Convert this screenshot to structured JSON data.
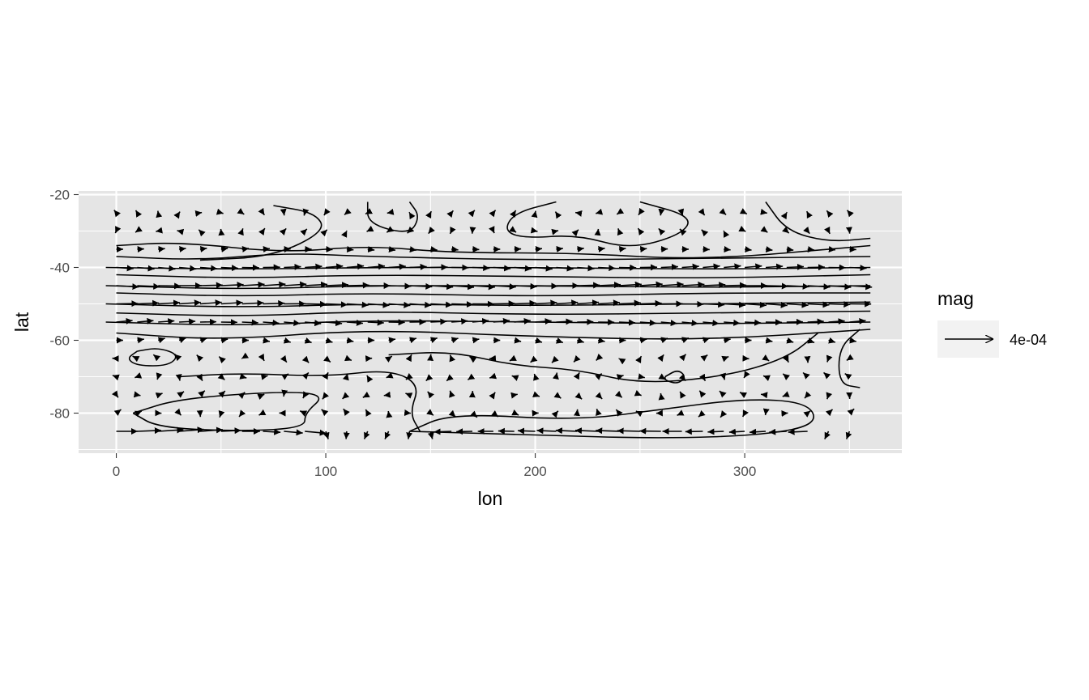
{
  "chart_data": {
    "type": "vector-field-contour",
    "xlabel": "lon",
    "ylabel": "lat",
    "xlim": [
      -18,
      375
    ],
    "ylim": [
      -91,
      -19
    ],
    "x_ticks": [
      0,
      100,
      200,
      300
    ],
    "x_tick_labels": [
      "0",
      "100",
      "200",
      "300"
    ],
    "y_ticks": [
      -20,
      -40,
      -60,
      -80
    ],
    "y_tick_labels": [
      "-20",
      "-40",
      "-60",
      "-80"
    ],
    "grid": true,
    "panel_background": "#e5e5e5",
    "grid_color": "#ffffff",
    "line_color": "#000000",
    "legend": {
      "title": "mag",
      "label": "4e-04",
      "placement": "right"
    },
    "vector_grid": {
      "lon_start": 0,
      "lon_step": 10,
      "lon_count": 36,
      "lat_values": [
        -25,
        -30,
        -35,
        -40,
        -45,
        -50,
        -55,
        -60,
        -65,
        -70,
        -75,
        -80,
        -85
      ]
    },
    "contours": [
      [
        [
          -5,
          -40
        ],
        [
          60,
          -40.5
        ],
        [
          120,
          -40
        ],
        [
          200,
          -40
        ],
        [
          280,
          -40.5
        ],
        [
          360,
          -40
        ]
      ],
      [
        [
          -5,
          -45
        ],
        [
          60,
          -46
        ],
        [
          120,
          -45
        ],
        [
          200,
          -45
        ],
        [
          280,
          -45.5
        ],
        [
          360,
          -45
        ]
      ],
      [
        [
          -5,
          -50
        ],
        [
          60,
          -51
        ],
        [
          120,
          -50
        ],
        [
          200,
          -50.5
        ],
        [
          280,
          -50
        ],
        [
          360,
          -49.5
        ]
      ],
      [
        [
          -5,
          -55
        ],
        [
          60,
          -56
        ],
        [
          120,
          -54.5
        ],
        [
          200,
          -55
        ],
        [
          280,
          -55.5
        ],
        [
          360,
          -55
        ]
      ],
      [
        [
          0,
          -37
        ],
        [
          40,
          -38
        ],
        [
          80,
          -36
        ],
        [
          120,
          -37
        ],
        [
          200,
          -38
        ],
        [
          280,
          -37.5
        ],
        [
          360,
          -37
        ]
      ],
      [
        [
          0,
          -42
        ],
        [
          60,
          -43
        ],
        [
          120,
          -42
        ],
        [
          200,
          -42.5
        ],
        [
          280,
          -43
        ],
        [
          360,
          -42
        ]
      ],
      [
        [
          0,
          -47
        ],
        [
          60,
          -48
        ],
        [
          120,
          -47
        ],
        [
          200,
          -48
        ],
        [
          280,
          -47
        ],
        [
          360,
          -47
        ]
      ],
      [
        [
          0,
          -52.5
        ],
        [
          60,
          -53.5
        ],
        [
          120,
          -52
        ],
        [
          200,
          -53
        ],
        [
          280,
          -52.5
        ],
        [
          360,
          -52
        ]
      ],
      [
        [
          0,
          -34
        ],
        [
          30,
          -33
        ],
        [
          80,
          -36
        ],
        [
          120,
          -34
        ],
        [
          160,
          -36
        ],
        [
          220,
          -36
        ],
        [
          280,
          -38
        ],
        [
          360,
          -34
        ]
      ],
      [
        [
          0,
          -58
        ],
        [
          50,
          -60
        ],
        [
          120,
          -57
        ],
        [
          200,
          -59
        ],
        [
          280,
          -60
        ],
        [
          360,
          -57
        ]
      ],
      [
        [
          10,
          -63
        ],
        [
          20,
          -62
        ],
        [
          30,
          -64
        ],
        [
          25,
          -67
        ],
        [
          10,
          -67
        ],
        [
          5,
          -65
        ],
        [
          10,
          -63
        ]
      ],
      [
        [
          75,
          -23
        ],
        [
          95,
          -25
        ],
        [
          100,
          -30
        ],
        [
          75,
          -37
        ],
        [
          40,
          -38
        ]
      ],
      [
        [
          120,
          -22
        ],
        [
          120,
          -28
        ],
        [
          140,
          -31
        ],
        [
          145,
          -26
        ],
        [
          140,
          -22
        ]
      ],
      [
        [
          210,
          -22
        ],
        [
          190,
          -25
        ],
        [
          185,
          -30
        ],
        [
          195,
          -32
        ],
        [
          220,
          -31
        ],
        [
          245,
          -35
        ],
        [
          270,
          -31
        ],
        [
          275,
          -26
        ],
        [
          250,
          -22
        ]
      ],
      [
        [
          310,
          -22
        ],
        [
          320,
          -30
        ],
        [
          340,
          -33
        ],
        [
          360,
          -32
        ]
      ],
      [
        [
          130,
          -64
        ],
        [
          160,
          -63
        ],
        [
          190,
          -67
        ],
        [
          220,
          -68
        ],
        [
          250,
          -72
        ],
        [
          290,
          -70
        ],
        [
          320,
          -65
        ],
        [
          335,
          -58
        ]
      ],
      [
        [
          8,
          -80
        ],
        [
          30,
          -76
        ],
        [
          80,
          -74
        ],
        [
          100,
          -75
        ],
        [
          90,
          -80
        ],
        [
          90,
          -84
        ],
        [
          60,
          -85
        ],
        [
          20,
          -84
        ],
        [
          8,
          -80
        ]
      ],
      [
        [
          30,
          -70
        ],
        [
          60,
          -69
        ],
        [
          100,
          -70
        ],
        [
          130,
          -68
        ],
        [
          145,
          -72
        ],
        [
          140,
          -80
        ],
        [
          145,
          -85
        ]
      ],
      [
        [
          140,
          -85
        ],
        [
          200,
          -86
        ],
        [
          260,
          -87
        ],
        [
          310,
          -86
        ],
        [
          335,
          -83
        ],
        [
          330,
          -77
        ],
        [
          300,
          -76
        ],
        [
          260,
          -79
        ],
        [
          220,
          -82
        ],
        [
          160,
          -80
        ],
        [
          140,
          -85
        ]
      ],
      [
        [
          262,
          -70
        ],
        [
          268,
          -68
        ],
        [
          272,
          -70
        ],
        [
          268,
          -72
        ],
        [
          262,
          -71
        ],
        [
          262,
          -70
        ]
      ],
      [
        [
          355,
          -57
        ],
        [
          345,
          -62
        ],
        [
          345,
          -72
        ],
        [
          355,
          -73
        ]
      ]
    ]
  }
}
